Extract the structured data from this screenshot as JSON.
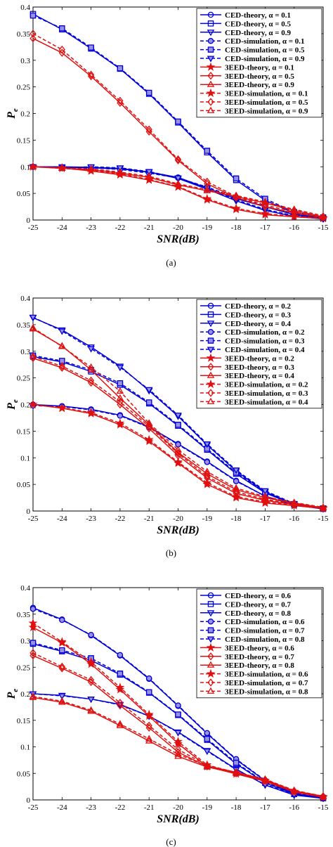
{
  "chart_data": [
    {
      "type": "line",
      "caption": "(a)",
      "xlabel": "SNR(dB)",
      "ylabel_main": "P",
      "ylabel_sub": "e",
      "xlim": [
        -25,
        -15
      ],
      "ylim": [
        0,
        0.4
      ],
      "xticks": [
        -25,
        -24,
        -23,
        -22,
        -21,
        -20,
        -19,
        -18,
        -17,
        -16,
        -15
      ],
      "yticks": [
        0,
        0.05,
        0.1,
        0.15,
        0.2,
        0.25,
        0.3,
        0.35,
        0.4
      ],
      "ytick_labels": [
        "0",
        "0.05",
        "0.1",
        "0.15",
        "0.2",
        "0.25",
        "0.3",
        "0.35",
        "0.4"
      ],
      "grid": false,
      "legend_position": "top-right",
      "x": [
        -25,
        -24,
        -23,
        -22,
        -21,
        -20,
        -19,
        -18,
        -17,
        -16,
        -15
      ],
      "series": [
        {
          "name": "CED-theory, α = 0.1",
          "color": "#0000d8",
          "marker": "circle",
          "dash": false,
          "values": [
            0.1,
            0.099,
            0.098,
            0.096,
            0.09,
            0.08,
            0.06,
            0.04,
            0.025,
            0.01,
            0.003
          ]
        },
        {
          "name": "CED-theory, α = 0.5",
          "color": "#0000d8",
          "marker": "square",
          "dash": false,
          "values": [
            0.387,
            0.358,
            0.322,
            0.284,
            0.237,
            0.183,
            0.127,
            0.075,
            0.037,
            0.013,
            0.003
          ]
        },
        {
          "name": "CED-theory, α = 0.9",
          "color": "#0000d8",
          "marker": "triangle-down",
          "dash": false,
          "values": [
            0.1,
            0.1,
            0.099,
            0.097,
            0.09,
            0.078,
            0.058,
            0.036,
            0.018,
            0.007,
            0.002
          ]
        },
        {
          "name": "CED-simulation, α = 0.1",
          "color": "#0000d8",
          "marker": "circle-filled",
          "dash": true,
          "values": [
            0.1,
            0.099,
            0.098,
            0.095,
            0.088,
            0.079,
            0.062,
            0.042,
            0.026,
            0.011,
            0.004
          ]
        },
        {
          "name": "CED-simulation, α = 0.5",
          "color": "#0000d8",
          "marker": "square-filled",
          "dash": true,
          "values": [
            0.384,
            0.36,
            0.324,
            0.285,
            0.239,
            0.185,
            0.13,
            0.078,
            0.04,
            0.015,
            0.005
          ]
        },
        {
          "name": "CED-simulation, α = 0.9",
          "color": "#0000d8",
          "marker": "triangle-down-filled",
          "dash": true,
          "values": [
            0.1,
            0.098,
            0.1,
            0.098,
            0.091,
            0.079,
            0.06,
            0.038,
            0.02,
            0.008,
            0.003
          ]
        },
        {
          "name": "3EED-theory, α = 0.1",
          "color": "#e01010",
          "marker": "star",
          "dash": false,
          "values": [
            0.1,
            0.098,
            0.092,
            0.085,
            0.075,
            0.062,
            0.038,
            0.02,
            0.01,
            0.006,
            0.003
          ]
        },
        {
          "name": "3EED-theory, α = 0.5",
          "color": "#e01010",
          "marker": "diamond",
          "dash": false,
          "values": [
            0.341,
            0.314,
            0.27,
            0.22,
            0.166,
            0.112,
            0.068,
            0.042,
            0.025,
            0.013,
            0.005
          ]
        },
        {
          "name": "3EED-theory, α = 0.9",
          "color": "#e01010",
          "marker": "triangle-up",
          "dash": false,
          "values": [
            0.1,
            0.097,
            0.095,
            0.088,
            0.08,
            0.066,
            0.055,
            0.044,
            0.032,
            0.018,
            0.006
          ]
        },
        {
          "name": "3EED-simulation, α = 0.1",
          "color": "#e01010",
          "marker": "star",
          "dash": true,
          "values": [
            0.1,
            0.097,
            0.093,
            0.087,
            0.076,
            0.063,
            0.04,
            0.022,
            0.012,
            0.007,
            0.004
          ]
        },
        {
          "name": "3EED-simulation, α = 0.5",
          "color": "#e01010",
          "marker": "diamond",
          "dash": true,
          "values": [
            0.35,
            0.32,
            0.273,
            0.224,
            0.17,
            0.114,
            0.072,
            0.044,
            0.028,
            0.015,
            0.006
          ]
        },
        {
          "name": "3EED-simulation, α = 0.9",
          "color": "#e01010",
          "marker": "triangle-up",
          "dash": true,
          "values": [
            0.1,
            0.098,
            0.096,
            0.09,
            0.082,
            0.068,
            0.057,
            0.046,
            0.034,
            0.02,
            0.008
          ]
        }
      ]
    },
    {
      "type": "line",
      "caption": "(b)",
      "xlabel": "SNR(dB)",
      "ylabel_main": "P",
      "ylabel_sub": "e",
      "xlim": [
        -25,
        -15
      ],
      "ylim": [
        0,
        0.4
      ],
      "xticks": [
        -25,
        -24,
        -23,
        -22,
        -21,
        -20,
        -19,
        -18,
        -17,
        -16,
        -15
      ],
      "yticks": [
        0,
        0.05,
        0.1,
        0.15,
        0.2,
        0.25,
        0.3,
        0.35,
        0.4
      ],
      "ytick_labels": [
        "0",
        "0.05",
        "0.1",
        "0.15",
        "0.2",
        "0.25",
        "0.3",
        "0.35",
        "0.4"
      ],
      "grid": false,
      "legend_position": "top-right",
      "x": [
        -25,
        -24,
        -23,
        -22,
        -21,
        -20,
        -19,
        -18,
        -17,
        -16,
        -15
      ],
      "series": [
        {
          "name": "CED-theory, α = 0.2",
          "color": "#0000d8",
          "marker": "circle",
          "dash": false,
          "values": [
            0.2,
            0.197,
            0.191,
            0.18,
            0.158,
            0.126,
            0.093,
            0.057,
            0.028,
            0.011,
            0.004
          ]
        },
        {
          "name": "CED-theory, α = 0.3",
          "color": "#0000d8",
          "marker": "square",
          "dash": false,
          "values": [
            0.29,
            0.28,
            0.262,
            0.237,
            0.202,
            0.16,
            0.115,
            0.07,
            0.034,
            0.012,
            0.004
          ]
        },
        {
          "name": "CED-theory, α = 0.4",
          "color": "#0000d8",
          "marker": "triangle-down",
          "dash": false,
          "values": [
            0.363,
            0.34,
            0.308,
            0.272,
            0.226,
            0.178,
            0.124,
            0.075,
            0.036,
            0.013,
            0.004
          ]
        },
        {
          "name": "CED-simulation, α = 0.2",
          "color": "#0000d8",
          "marker": "circle-filled",
          "dash": true,
          "values": [
            0.198,
            0.196,
            0.19,
            0.179,
            0.157,
            0.125,
            0.092,
            0.056,
            0.028,
            0.011,
            0.004
          ]
        },
        {
          "name": "CED-simulation, α = 0.3",
          "color": "#0000d8",
          "marker": "square-filled",
          "dash": true,
          "values": [
            0.292,
            0.282,
            0.265,
            0.24,
            0.204,
            0.162,
            0.117,
            0.072,
            0.035,
            0.013,
            0.005
          ]
        },
        {
          "name": "CED-simulation, α = 0.4",
          "color": "#0000d8",
          "marker": "triangle-down-filled",
          "dash": true,
          "values": [
            0.364,
            0.338,
            0.305,
            0.27,
            0.228,
            0.18,
            0.126,
            0.077,
            0.038,
            0.014,
            0.005
          ]
        },
        {
          "name": "3EED-theory, α = 0.2",
          "color": "#e01010",
          "marker": "star",
          "dash": false,
          "values": [
            0.2,
            0.193,
            0.183,
            0.162,
            0.131,
            0.09,
            0.05,
            0.025,
            0.015,
            0.01,
            0.005
          ]
        },
        {
          "name": "3EED-theory, α = 0.3",
          "color": "#e01010",
          "marker": "diamond",
          "dash": false,
          "values": [
            0.287,
            0.269,
            0.241,
            0.2,
            0.155,
            0.104,
            0.062,
            0.033,
            0.02,
            0.012,
            0.005
          ]
        },
        {
          "name": "3EED-theory, α = 0.4",
          "color": "#e01010",
          "marker": "triangle-up",
          "dash": false,
          "values": [
            0.342,
            0.31,
            0.265,
            0.212,
            0.162,
            0.11,
            0.07,
            0.04,
            0.025,
            0.015,
            0.006
          ]
        },
        {
          "name": "3EED-simulation, α = 0.2",
          "color": "#e01010",
          "marker": "star",
          "dash": true,
          "values": [
            0.2,
            0.194,
            0.185,
            0.165,
            0.134,
            0.092,
            0.053,
            0.027,
            0.017,
            0.011,
            0.006
          ]
        },
        {
          "name": "3EED-simulation, α = 0.3",
          "color": "#e01010",
          "marker": "diamond",
          "dash": true,
          "values": [
            0.29,
            0.272,
            0.245,
            0.205,
            0.159,
            0.108,
            0.065,
            0.036,
            0.022,
            0.013,
            0.006
          ]
        },
        {
          "name": "3EED-simulation, α = 0.4",
          "color": "#e01010",
          "marker": "triangle-up",
          "dash": true,
          "values": [
            0.344,
            0.309,
            0.27,
            0.225,
            0.165,
            0.115,
            0.074,
            0.043,
            0.027,
            0.016,
            0.007
          ]
        }
      ]
    },
    {
      "type": "line",
      "caption": "(c)",
      "xlabel": "SNR(dB)",
      "ylabel_main": "P",
      "ylabel_sub": "e",
      "xlim": [
        -25,
        -15
      ],
      "ylim": [
        0,
        0.4
      ],
      "xticks": [
        -25,
        -24,
        -23,
        -22,
        -21,
        -20,
        -19,
        -18,
        -17,
        -16,
        -15
      ],
      "yticks": [
        0,
        0.05,
        0.1,
        0.15,
        0.2,
        0.25,
        0.3,
        0.35,
        0.4
      ],
      "ytick_labels": [
        "0",
        "0.05",
        "0.1",
        "0.15",
        "0.2",
        "0.25",
        "0.3",
        "0.35",
        "0.4"
      ],
      "grid": false,
      "legend_position": "top-right",
      "x": [
        -25,
        -24,
        -23,
        -22,
        -21,
        -20,
        -19,
        -18,
        -17,
        -16,
        -15
      ],
      "series": [
        {
          "name": "CED-theory, α = 0.6",
          "color": "#0000d8",
          "marker": "circle",
          "dash": false,
          "values": [
            0.362,
            0.34,
            0.31,
            0.272,
            0.228,
            0.177,
            0.125,
            0.076,
            0.036,
            0.012,
            0.004
          ]
        },
        {
          "name": "CED-theory, α = 0.7",
          "color": "#0000d8",
          "marker": "square",
          "dash": false,
          "values": [
            0.294,
            0.28,
            0.263,
            0.236,
            0.202,
            0.16,
            0.113,
            0.068,
            0.032,
            0.011,
            0.003
          ]
        },
        {
          "name": "CED-theory, α = 0.8",
          "color": "#0000d8",
          "marker": "triangle-down",
          "dash": false,
          "values": [
            0.2,
            0.197,
            0.19,
            0.18,
            0.158,
            0.128,
            0.093,
            0.058,
            0.028,
            0.009,
            0.003
          ]
        },
        {
          "name": "CED-simulation, α = 0.6",
          "color": "#0000d8",
          "marker": "circle-filled",
          "dash": true,
          "values": [
            0.36,
            0.339,
            0.311,
            0.273,
            0.229,
            0.178,
            0.126,
            0.077,
            0.037,
            0.013,
            0.004
          ]
        },
        {
          "name": "CED-simulation, α = 0.7",
          "color": "#0000d8",
          "marker": "square-filled",
          "dash": true,
          "values": [
            0.296,
            0.282,
            0.267,
            0.238,
            0.203,
            0.161,
            0.115,
            0.07,
            0.033,
            0.012,
            0.004
          ]
        },
        {
          "name": "CED-simulation, α = 0.8",
          "color": "#0000d8",
          "marker": "triangle-down-filled",
          "dash": true,
          "values": [
            0.2,
            0.196,
            0.19,
            0.179,
            0.158,
            0.127,
            0.092,
            0.057,
            0.029,
            0.01,
            0.003
          ]
        },
        {
          "name": "3EED-theory, α = 0.6",
          "color": "#e01010",
          "marker": "star",
          "dash": false,
          "values": [
            0.325,
            0.296,
            0.256,
            0.208,
            0.158,
            0.106,
            0.063,
            0.049,
            0.035,
            0.015,
            0.005
          ]
        },
        {
          "name": "3EED-theory, α = 0.7",
          "color": "#e01010",
          "marker": "diamond",
          "dash": false,
          "values": [
            0.272,
            0.248,
            0.222,
            0.178,
            0.136,
            0.09,
            0.063,
            0.05,
            0.036,
            0.016,
            0.006
          ]
        },
        {
          "name": "3EED-theory, α = 0.8",
          "color": "#e01010",
          "marker": "triangle-up",
          "dash": false,
          "values": [
            0.193,
            0.184,
            0.167,
            0.14,
            0.111,
            0.082,
            0.062,
            0.05,
            0.037,
            0.017,
            0.006
          ]
        },
        {
          "name": "3EED-simulation, α = 0.6",
          "color": "#e01010",
          "marker": "star",
          "dash": true,
          "values": [
            0.333,
            0.298,
            0.26,
            0.212,
            0.161,
            0.11,
            0.066,
            0.051,
            0.037,
            0.016,
            0.006
          ]
        },
        {
          "name": "3EED-simulation, α = 0.7",
          "color": "#e01010",
          "marker": "diamond",
          "dash": true,
          "values": [
            0.277,
            0.251,
            0.226,
            0.183,
            0.14,
            0.095,
            0.065,
            0.052,
            0.038,
            0.017,
            0.007
          ]
        },
        {
          "name": "3EED-simulation, α = 0.8",
          "color": "#e01010",
          "marker": "triangle-up",
          "dash": true,
          "values": [
            0.195,
            0.186,
            0.169,
            0.143,
            0.115,
            0.086,
            0.064,
            0.052,
            0.039,
            0.018,
            0.007
          ]
        }
      ]
    }
  ]
}
